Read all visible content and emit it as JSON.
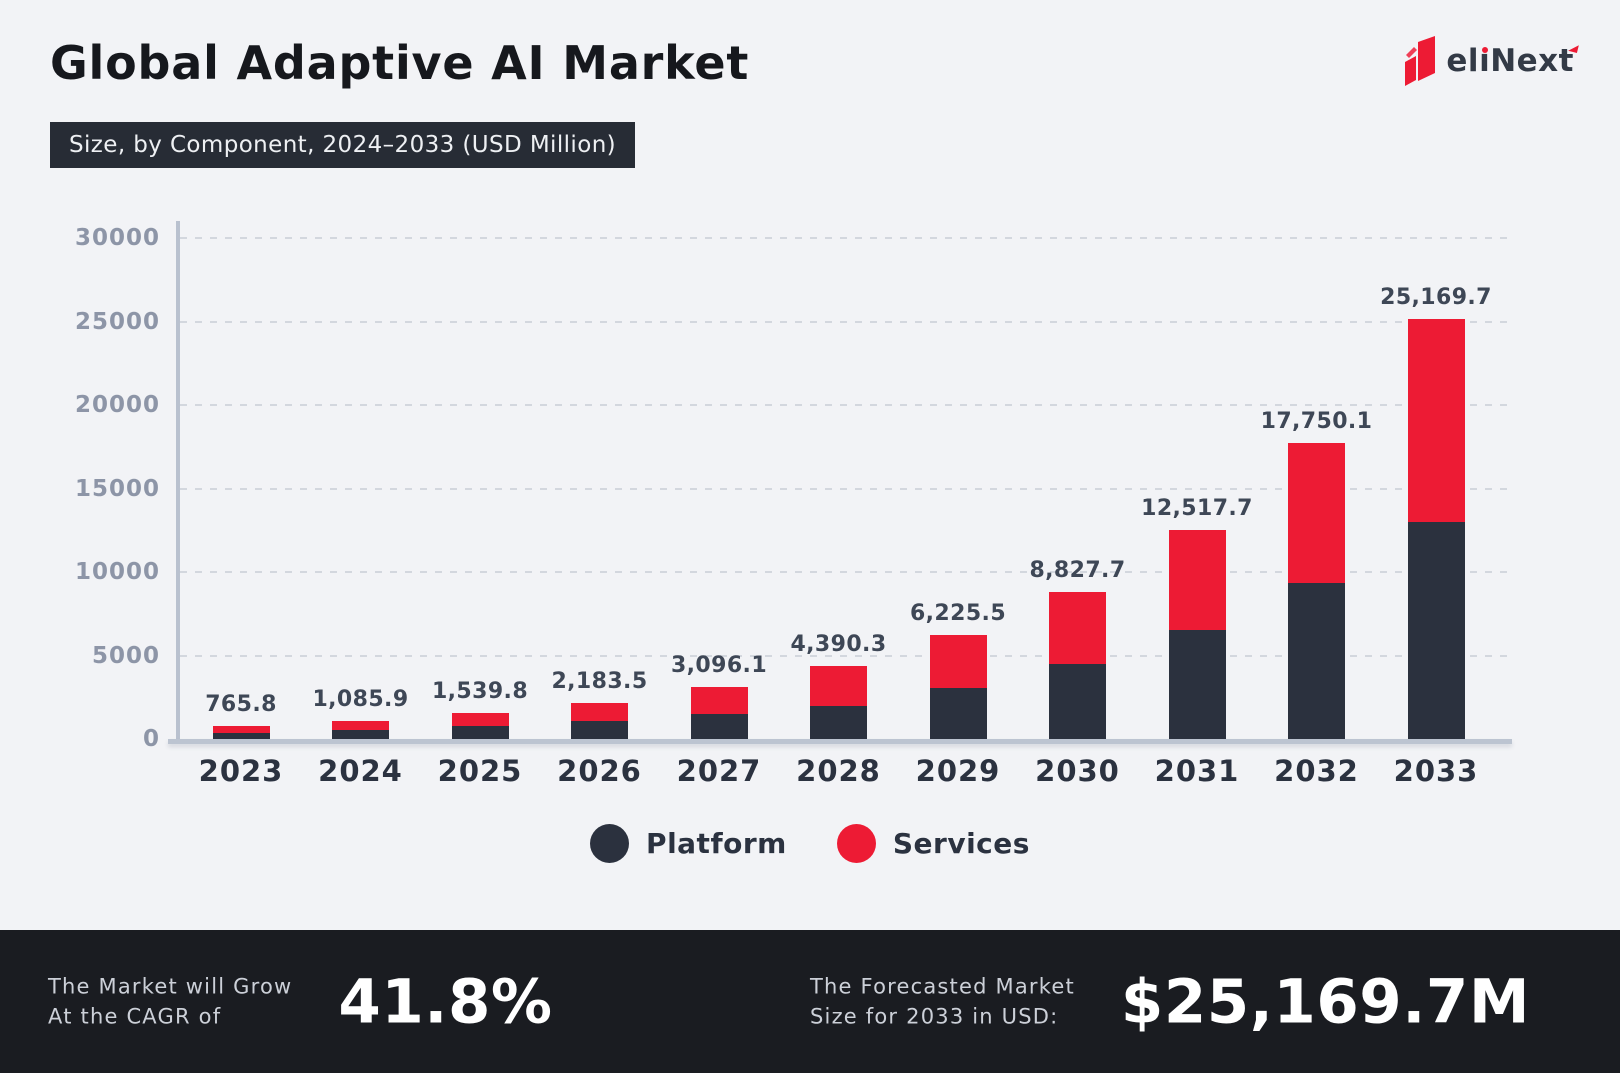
{
  "header": {
    "title": "Global Adaptive AI Market",
    "subtitle": "Size, by Component, 2024–2033 (USD Million)"
  },
  "logo": {
    "name": "elinext",
    "word": {
      "p1": "el",
      "p2": "ı",
      "p3": "Nex",
      "p4": "t"
    },
    "accent_color": "#ed1b34"
  },
  "chart_data": {
    "type": "bar",
    "stacked": true,
    "title": "Global Adaptive AI Market Size, by Component, 2024–2033 (USD Million)",
    "unit": "USD Million",
    "categories": [
      "2023",
      "2024",
      "2025",
      "2026",
      "2027",
      "2028",
      "2029",
      "2030",
      "2031",
      "2032",
      "2033"
    ],
    "series": [
      {
        "name": "Platform",
        "color": "#2b313e",
        "values": [
          350,
          530,
          780,
          1050,
          1470,
          1980,
          3050,
          4480,
          6550,
          9320,
          13000
        ]
      },
      {
        "name": "Services",
        "color": "#ed1b34",
        "values": [
          415.8,
          555.9,
          759.8,
          1133.5,
          1626.1,
          2410.3,
          3175.5,
          4347.7,
          5967.7,
          8430.1,
          12169.7
        ]
      }
    ],
    "totals": [
      765.8,
      1085.9,
      1539.8,
      2183.5,
      3096.1,
      4390.3,
      6225.5,
      8827.7,
      12517.7,
      17750.1,
      25169.7
    ],
    "total_labels": [
      "765.8",
      "1,085.9",
      "1,539.8",
      "2,183.5",
      "3,096.1",
      "4,390.3",
      "6,225.5",
      "8,827.7",
      "12,517.7",
      "17,750.1",
      "25,169.7"
    ],
    "ylim": [
      0,
      30000
    ],
    "yticks": [
      0,
      5000,
      10000,
      15000,
      20000,
      25000,
      30000
    ],
    "grid": "horizontal-dashed",
    "legend_position": "bottom"
  },
  "legend": [
    {
      "label": "Platform",
      "color": "#2b313e"
    },
    {
      "label": "Services",
      "color": "#ed1b34"
    }
  ],
  "footer": {
    "left": {
      "label_line1": "The Market will Grow",
      "label_line2": "At the CAGR of",
      "value": "41.8%"
    },
    "right": {
      "label_line1": "The Forecasted Market",
      "label_line2": "Size for 2033 in USD:",
      "value": "$25,169.7M"
    }
  },
  "colors": {
    "page_bg": "#f2f3f6",
    "footer_bg": "#1a1c21",
    "badge_bg": "#272c35",
    "platform": "#2b313e",
    "services_red": "#ed1b34",
    "axis": "#bcc4d1",
    "grid": "#d3d7de",
    "ytick_text": "#8d95a7",
    "value_text": "#3e4756"
  }
}
